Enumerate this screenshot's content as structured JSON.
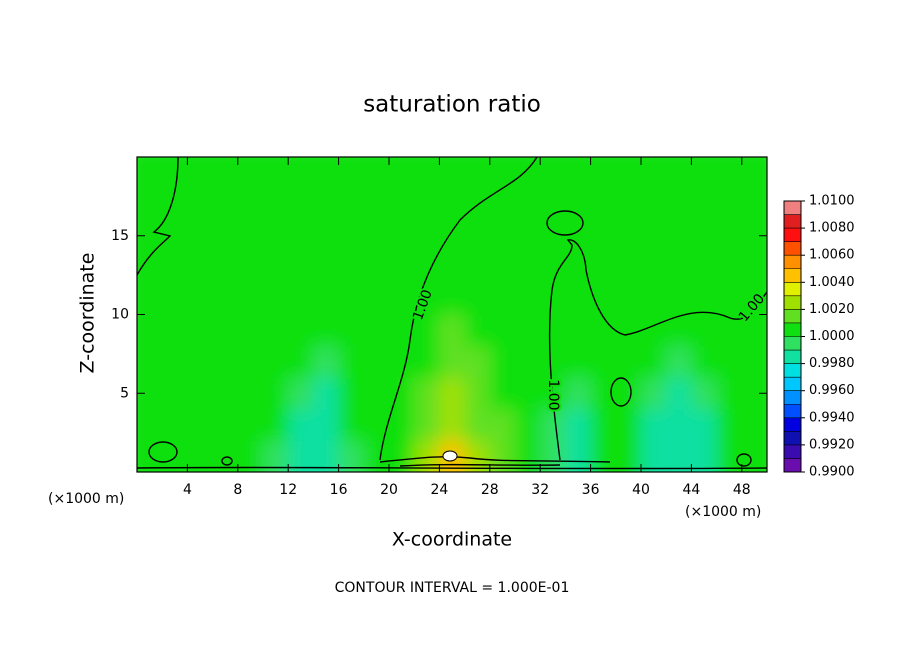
{
  "chart_data": {
    "type": "contour",
    "title": "saturation ratio",
    "x_label": "X-coordinate",
    "y_label": "Z-coordinate",
    "x_unit_left": "(×1000 m)",
    "x_unit_right": "(×1000 m)",
    "footer": "CONTOUR INTERVAL = 1.000E-01",
    "contour_labels": [
      "1.00",
      "1.00",
      "1.00"
    ],
    "xlim": [
      0,
      50
    ],
    "ylim": [
      0,
      20
    ],
    "xticks": [
      4,
      8,
      12,
      16,
      20,
      24,
      28,
      32,
      36,
      40,
      44,
      48
    ],
    "yticks": [
      5,
      10,
      15
    ],
    "x": [
      1,
      3,
      5,
      7,
      9,
      11,
      13,
      15,
      17,
      19,
      21,
      23,
      25,
      27,
      29,
      31,
      33,
      35,
      37,
      39,
      41,
      43,
      45,
      47,
      49
    ],
    "y": [
      1,
      3,
      5,
      7,
      9,
      11,
      13,
      15,
      17,
      19
    ],
    "z": [
      [
        1.0005,
        1.0005,
        1.0005,
        1.0005,
        1.0005,
        0.9995,
        0.9985,
        0.9985,
        0.9995,
        1.0005,
        1.0005,
        1.0025,
        1.0045,
        1.0025,
        1.0015,
        1.0005,
        0.9995,
        0.9985,
        1.0005,
        1.0005,
        0.9985,
        0.9985,
        0.9985,
        1.0005,
        1.0005
      ],
      [
        1.0005,
        1.0005,
        1.0005,
        1.0005,
        1.0005,
        1.0005,
        0.9985,
        0.9985,
        1.0005,
        1.0005,
        1.0005,
        1.0015,
        1.0025,
        1.0015,
        1.0015,
        1.0005,
        0.9995,
        0.9985,
        1.0005,
        1.0005,
        0.9985,
        0.9985,
        0.9985,
        1.0005,
        1.0005
      ],
      [
        1.0005,
        1.0005,
        1.0005,
        1.0005,
        1.0005,
        1.0005,
        0.9995,
        0.9985,
        1.0005,
        1.0005,
        1.0005,
        1.0015,
        1.0025,
        1.0015,
        1.0005,
        1.0005,
        1.0005,
        0.9995,
        1.0005,
        1.0005,
        0.9995,
        0.9985,
        0.9995,
        1.0005,
        1.0005
      ],
      [
        1.0005,
        1.0005,
        1.0005,
        1.0005,
        1.0005,
        1.0005,
        1.0005,
        0.9995,
        1.0005,
        1.0005,
        1.0005,
        1.0005,
        1.0015,
        1.0015,
        1.0005,
        1.0005,
        1.0005,
        1.0005,
        1.0005,
        1.0005,
        1.0005,
        0.9995,
        1.0005,
        1.0005,
        1.0005
      ],
      [
        1.0005,
        1.0005,
        1.0005,
        1.0005,
        1.0005,
        1.0005,
        1.0005,
        1.0005,
        1.0005,
        1.0005,
        1.0005,
        1.0005,
        1.0015,
        1.0005,
        1.0005,
        1.0005,
        1.0005,
        1.0005,
        1.0005,
        1.0005,
        1.0005,
        1.0005,
        1.0005,
        1.0005,
        1.0005
      ],
      [
        1.0005,
        1.0005,
        1.0005,
        1.0005,
        1.0005,
        1.0005,
        1.0005,
        1.0005,
        1.0005,
        1.0005,
        1.0005,
        1.0005,
        1.0005,
        1.0005,
        1.0005,
        1.0005,
        1.0005,
        1.0005,
        1.0005,
        1.0005,
        1.0005,
        1.0005,
        1.0005,
        1.0005,
        1.0005
      ],
      [
        1.0005,
        1.0005,
        1.0005,
        1.0005,
        1.0005,
        1.0005,
        1.0005,
        1.0005,
        1.0005,
        1.0005,
        1.0005,
        1.0005,
        1.0005,
        1.0005,
        1.0005,
        1.0005,
        1.0005,
        1.0005,
        1.0005,
        1.0005,
        1.0005,
        1.0005,
        1.0005,
        1.0005,
        1.0005
      ],
      [
        1.0005,
        1.0005,
        1.0005,
        1.0005,
        1.0005,
        1.0005,
        1.0005,
        1.0005,
        1.0005,
        1.0005,
        1.0005,
        1.0005,
        1.0005,
        1.0005,
        1.0005,
        1.0005,
        1.0005,
        1.0005,
        1.0005,
        1.0005,
        1.0005,
        1.0005,
        1.0005,
        1.0005,
        1.0005
      ],
      [
        1.0005,
        1.0005,
        1.0005,
        1.0005,
        1.0005,
        1.0005,
        1.0005,
        1.0005,
        1.0005,
        1.0005,
        1.0005,
        1.0005,
        1.0005,
        1.0005,
        1.0005,
        1.0005,
        1.0005,
        1.0005,
        1.0005,
        1.0005,
        1.0005,
        1.0005,
        1.0005,
        1.0005,
        1.0005
      ],
      [
        1.0005,
        1.0005,
        1.0005,
        1.0005,
        1.0005,
        1.0005,
        1.0005,
        1.0005,
        1.0005,
        1.0005,
        1.0005,
        1.0005,
        1.0005,
        1.0005,
        1.0005,
        1.0005,
        1.0005,
        1.0005,
        1.0005,
        1.0005,
        1.0005,
        1.0005,
        1.0005,
        1.0005,
        1.0005
      ]
    ],
    "colorbar_lim": [
      0.99,
      1.01
    ],
    "colorbar_colors": [
      "#6a0dad",
      "#3a0cb0",
      "#1010b0",
      "#0000e0",
      "#0050ff",
      "#0090ff",
      "#00c8ff",
      "#00e0e0",
      "#10e0a0",
      "#30e060",
      "#10e010",
      "#60e020",
      "#a0e000",
      "#e0f000",
      "#ffc000",
      "#ff9000",
      "#ff5000",
      "#ff1010",
      "#e02020",
      "#f08080"
    ],
    "colorbar_ticks": [
      {
        "value": 0.99,
        "label": "0.9900"
      },
      {
        "value": 0.992,
        "label": "0.9920"
      },
      {
        "value": 0.994,
        "label": "0.9940"
      },
      {
        "value": 0.996,
        "label": "0.9960"
      },
      {
        "value": 0.998,
        "label": "0.9980"
      },
      {
        "value": 1,
        "label": "1.0000"
      },
      {
        "value": 1.002,
        "label": "1.0020"
      },
      {
        "value": 1.004,
        "label": "1.0040"
      },
      {
        "value": 1.006,
        "label": "1.0060"
      },
      {
        "value": 1.008,
        "label": "1.0080"
      },
      {
        "value": 1.01,
        "label": "1.0100"
      }
    ]
  }
}
